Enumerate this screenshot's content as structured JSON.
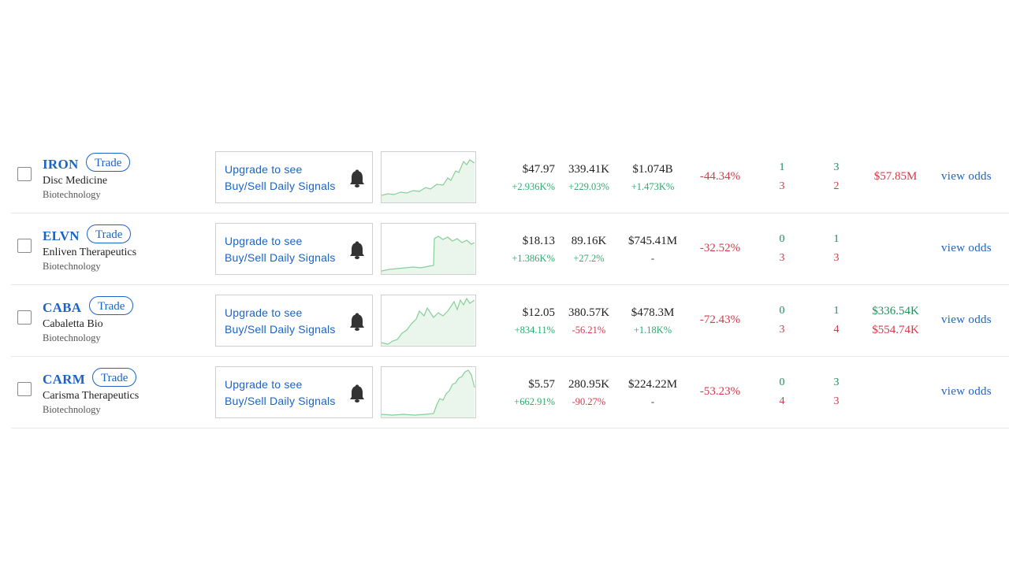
{
  "rows": [
    {
      "ticker": "IRON",
      "trade_label": "Trade",
      "trade_left": 95,
      "company": "Disc Medicine",
      "sector": "Biotechnology",
      "signal_line1": "Upgrade to see",
      "signal_line2": "Buy/Sell Daily Signals",
      "spark": [
        [
          0,
          55
        ],
        [
          8,
          53
        ],
        [
          16,
          54
        ],
        [
          24,
          51
        ],
        [
          32,
          52
        ],
        [
          40,
          49
        ],
        [
          48,
          50
        ],
        [
          56,
          45
        ],
        [
          62,
          47
        ],
        [
          70,
          41
        ],
        [
          78,
          42
        ],
        [
          84,
          33
        ],
        [
          88,
          36
        ],
        [
          94,
          24
        ],
        [
          98,
          26
        ],
        [
          104,
          12
        ],
        [
          108,
          16
        ],
        [
          112,
          10
        ],
        [
          118,
          14
        ]
      ],
      "price": "$47.97",
      "price_chg": "+2.936K%",
      "price_chg_color": "green",
      "volume": "339.41K",
      "volume_chg": "+229.03%",
      "volume_chg_color": "green",
      "mcap": "$1.074B",
      "mcap_chg": "+1.473K%",
      "mcap_chg_color": "green",
      "change": "-44.34%",
      "count1_top": "1",
      "count1_bot": "3",
      "count2_top": "3",
      "count2_bot": "2",
      "amount_top": "",
      "amount_mid": "$57.85M",
      "amount_mid_color": "red",
      "amount_bot": "",
      "odds_label": "view odds"
    },
    {
      "ticker": "ELVN",
      "trade_label": "Trade",
      "trade_left": 96,
      "company": "Enliven Therapeutics",
      "sector": "Biotechnology",
      "signal_line1": "Upgrade to see",
      "signal_line2": "Buy/Sell Daily Signals",
      "spark": [
        [
          0,
          60
        ],
        [
          10,
          58
        ],
        [
          20,
          57
        ],
        [
          30,
          56
        ],
        [
          40,
          55
        ],
        [
          50,
          56
        ],
        [
          60,
          54
        ],
        [
          66,
          53
        ],
        [
          67,
          19
        ],
        [
          72,
          16
        ],
        [
          78,
          20
        ],
        [
          84,
          17
        ],
        [
          90,
          22
        ],
        [
          96,
          19
        ],
        [
          102,
          24
        ],
        [
          108,
          21
        ],
        [
          114,
          26
        ],
        [
          118,
          24
        ]
      ],
      "price": "$18.13",
      "price_chg": "+1.386K%",
      "price_chg_color": "green",
      "volume": "89.16K",
      "volume_chg": "+27.2%",
      "volume_chg_color": "green",
      "mcap": "$745.41M",
      "mcap_chg": "-",
      "mcap_chg_color": "neutral",
      "change": "-32.52%",
      "count1_top": "0",
      "count1_bot": "3",
      "count2_top": "1",
      "count2_bot": "3",
      "amount_top": "",
      "amount_mid": "",
      "amount_mid_color": "red",
      "amount_bot": "",
      "odds_label": "view odds"
    },
    {
      "ticker": "CABA",
      "trade_label": "Trade",
      "trade_left": 99,
      "company": "Cabaletta Bio",
      "sector": "Biotechnology",
      "signal_line1": "Upgrade to see",
      "signal_line2": "Buy/Sell Daily Signals",
      "spark": [
        [
          0,
          60
        ],
        [
          8,
          62
        ],
        [
          14,
          58
        ],
        [
          20,
          56
        ],
        [
          26,
          48
        ],
        [
          32,
          44
        ],
        [
          38,
          36
        ],
        [
          44,
          30
        ],
        [
          48,
          20
        ],
        [
          54,
          26
        ],
        [
          58,
          16
        ],
        [
          62,
          22
        ],
        [
          66,
          28
        ],
        [
          72,
          22
        ],
        [
          78,
          26
        ],
        [
          84,
          20
        ],
        [
          88,
          14
        ],
        [
          92,
          8
        ],
        [
          96,
          18
        ],
        [
          100,
          6
        ],
        [
          104,
          12
        ],
        [
          108,
          4
        ],
        [
          112,
          10
        ],
        [
          118,
          6
        ]
      ],
      "price": "$12.05",
      "price_chg": "+834.11%",
      "price_chg_color": "green",
      "volume": "380.57K",
      "volume_chg": "-56.21%",
      "volume_chg_color": "red",
      "mcap": "$478.3M",
      "mcap_chg": "+1.18K%",
      "mcap_chg_color": "green",
      "change": "-72.43%",
      "count1_top": "0",
      "count1_bot": "3",
      "count2_top": "1",
      "count2_bot": "4",
      "amount_top": "$336.54K",
      "amount_mid": "",
      "amount_mid_color": "red",
      "amount_bot": "$554.74K",
      "odds_label": "view odds"
    },
    {
      "ticker": "CARM",
      "trade_label": "Trade",
      "trade_left": 103,
      "company": "Carisma Therapeutics",
      "sector": "Biotechnology",
      "signal_line1": "Upgrade to see",
      "signal_line2": "Buy/Sell Daily Signals",
      "spark": [
        [
          0,
          60
        ],
        [
          14,
          61
        ],
        [
          28,
          60
        ],
        [
          42,
          61
        ],
        [
          56,
          60
        ],
        [
          66,
          59
        ],
        [
          70,
          48
        ],
        [
          74,
          40
        ],
        [
          78,
          42
        ],
        [
          82,
          34
        ],
        [
          86,
          30
        ],
        [
          90,
          22
        ],
        [
          94,
          20
        ],
        [
          98,
          14
        ],
        [
          102,
          12
        ],
        [
          106,
          6
        ],
        [
          110,
          4
        ],
        [
          114,
          10
        ],
        [
          118,
          26
        ]
      ],
      "price": "$5.57",
      "price_chg": "+662.91%",
      "price_chg_color": "green",
      "volume": "280.95K",
      "volume_chg": "-90.27%",
      "volume_chg_color": "red",
      "mcap": "$224.22M",
      "mcap_chg": "-",
      "mcap_chg_color": "neutral",
      "change": "-53.23%",
      "count1_top": "0",
      "count1_bot": "4",
      "count2_top": "3",
      "count2_bot": "3",
      "amount_top": "",
      "amount_mid": "",
      "amount_mid_color": "red",
      "amount_bot": "",
      "odds_label": "view odds"
    }
  ],
  "colors": {
    "accent": "#1a63c7",
    "positive": "#2eaa6e",
    "negative": "#d23a4a",
    "count_positive": "#1f8f5a",
    "spark_line": "#86cf98",
    "spark_fill": "#eaf6ec"
  },
  "icons": {
    "checkbox": "checkbox-icon",
    "bell": "bell-icon"
  }
}
